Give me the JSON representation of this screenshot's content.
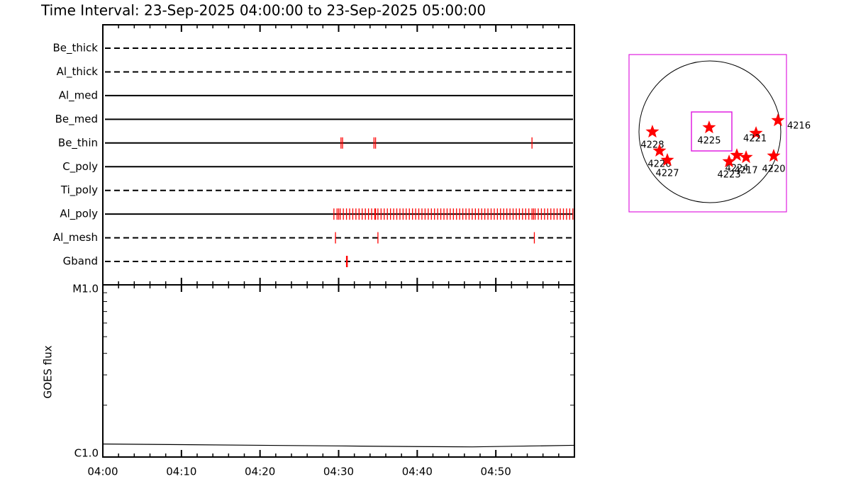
{
  "chart_data": [
    {
      "type": "timeline",
      "title": "Time Interval: 23-Sep-2025 04:00:00 to 23-Sep-2025 05:00:00",
      "categories": [
        "Be_thick",
        "Al_thick",
        "Al_med",
        "Be_med",
        "Be_thin",
        "C_poly",
        "Ti_poly",
        "Al_poly",
        "Al_mesh",
        "Gband"
      ],
      "styles": [
        "dashed",
        "dashed",
        "solid",
        "solid",
        "solid",
        "solid",
        "dashed",
        "solid",
        "dashed",
        "dashed"
      ],
      "events": [
        [],
        [],
        [],
        [],
        [
          30.3,
          30.5,
          34.5,
          34.7,
          54.6
        ],
        [],
        [],
        [
          29.4,
          29.8,
          30.0,
          30.2,
          30.6,
          31.0,
          31.4,
          31.8,
          32.2,
          32.6,
          33.0,
          33.4,
          33.8,
          34.2,
          34.6,
          34.7,
          35.0,
          35.4,
          35.8,
          36.2,
          36.6,
          37.0,
          37.4,
          37.8,
          38.2,
          38.6,
          39.0,
          39.4,
          39.8,
          40.2,
          40.6,
          41.0,
          41.4,
          41.8,
          42.2,
          42.6,
          43.0,
          43.4,
          43.8,
          44.2,
          44.6,
          45.0,
          45.4,
          45.8,
          46.2,
          46.6,
          47.0,
          47.4,
          47.8,
          48.2,
          48.6,
          49.0,
          49.4,
          49.8,
          50.2,
          50.6,
          51.0,
          51.4,
          51.8,
          52.2,
          52.6,
          53.0,
          53.4,
          53.8,
          54.2,
          54.6,
          54.8,
          55.0,
          55.4,
          55.8,
          56.2,
          56.6,
          57.0,
          57.4,
          57.8,
          58.2,
          58.6,
          59.0,
          59.4,
          59.8
        ],
        [
          29.6,
          35.0,
          54.9
        ],
        [
          31.0,
          31.1
        ]
      ],
      "color": "#ff0000",
      "xlim": [
        0,
        60
      ],
      "xticks": [
        {
          "value": 0,
          "label": "04:00"
        },
        {
          "value": 10,
          "label": "04:10"
        },
        {
          "value": 20,
          "label": "04:20"
        },
        {
          "value": 30,
          "label": "04:30"
        },
        {
          "value": 40,
          "label": "04:40"
        },
        {
          "value": 50,
          "label": "04:50"
        }
      ],
      "xminorticks": [
        2,
        4,
        6,
        8,
        12,
        14,
        16,
        18,
        22,
        24,
        26,
        28,
        32,
        34,
        36,
        38,
        42,
        44,
        46,
        48,
        52,
        54,
        56,
        58
      ]
    },
    {
      "type": "line",
      "ylabel": "GOES flux",
      "x": [
        0,
        10,
        20,
        30,
        40,
        47,
        55,
        60
      ],
      "values": [
        1.19e-06,
        1.18e-06,
        1.17e-06,
        1.16e-06,
        1.15e-06,
        1.145e-06,
        1.16e-06,
        1.17e-06
      ],
      "color": "#000000",
      "log_scale": true,
      "xlim": [
        0,
        60
      ],
      "ylim": [
        1e-06,
        1e-05
      ],
      "yticks": [
        {
          "value": 1e-06,
          "label": "C1.0"
        },
        {
          "value": 1e-05,
          "label": "M1.0"
        }
      ],
      "yminorticks": [
        2e-06,
        3e-06,
        4e-06,
        5e-06,
        6e-06,
        7e-06,
        8e-06,
        9e-06
      ]
    },
    {
      "type": "map",
      "labels": [
        "4228",
        "4226",
        "4227",
        "4225",
        "4216",
        "4221",
        "4224",
        "4223",
        "4217",
        "4220"
      ],
      "x": [
        -770,
        -675,
        -570,
        -10,
        912,
        618,
        361,
        257,
        485,
        855
      ],
      "y": [
        0,
        -256,
        -380,
        57,
        152,
        -19,
        -314,
        -399,
        -342,
        -323
      ],
      "color": "#ff0000"
    }
  ]
}
